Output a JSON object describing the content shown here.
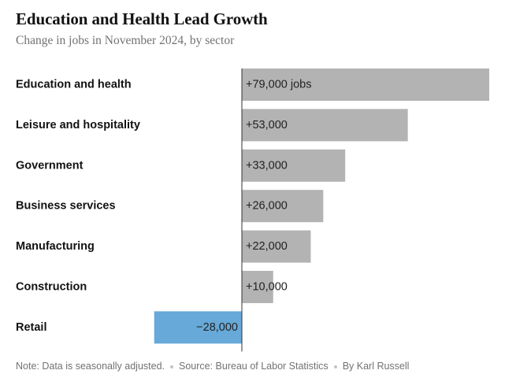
{
  "header": {
    "title": "Education and Health Lead Growth",
    "subtitle": "Change in jobs in November 2024, by sector"
  },
  "footer": {
    "note": "Note: Data is seasonally adjusted.",
    "source": "Source: Bureau of Labor Statistics",
    "credit": "By Karl Russell"
  },
  "colors": {
    "positive": "#b3b3b3",
    "negative": "#67a9d8",
    "axis": "#333333",
    "label": "#121212",
    "value": "#222222"
  },
  "chart_data": {
    "type": "bar",
    "orientation": "horizontal",
    "title": "Education and Health Lead Growth",
    "subtitle": "Change in jobs in November 2024, by sector",
    "categories": [
      "Education and health",
      "Leisure and hospitality",
      "Government",
      "Business services",
      "Manufacturing",
      "Construction",
      "Retail"
    ],
    "values": [
      79000,
      53000,
      33000,
      26000,
      22000,
      10000,
      -28000
    ],
    "value_labels": [
      "+79,000 jobs",
      "+53,000",
      "+33,000",
      "+26,000",
      "+22,000",
      "+10,000",
      "−28,000"
    ],
    "xlim": [
      -28000,
      79000
    ],
    "xlabel": "",
    "ylabel": "",
    "grid": false,
    "legend": "none"
  }
}
